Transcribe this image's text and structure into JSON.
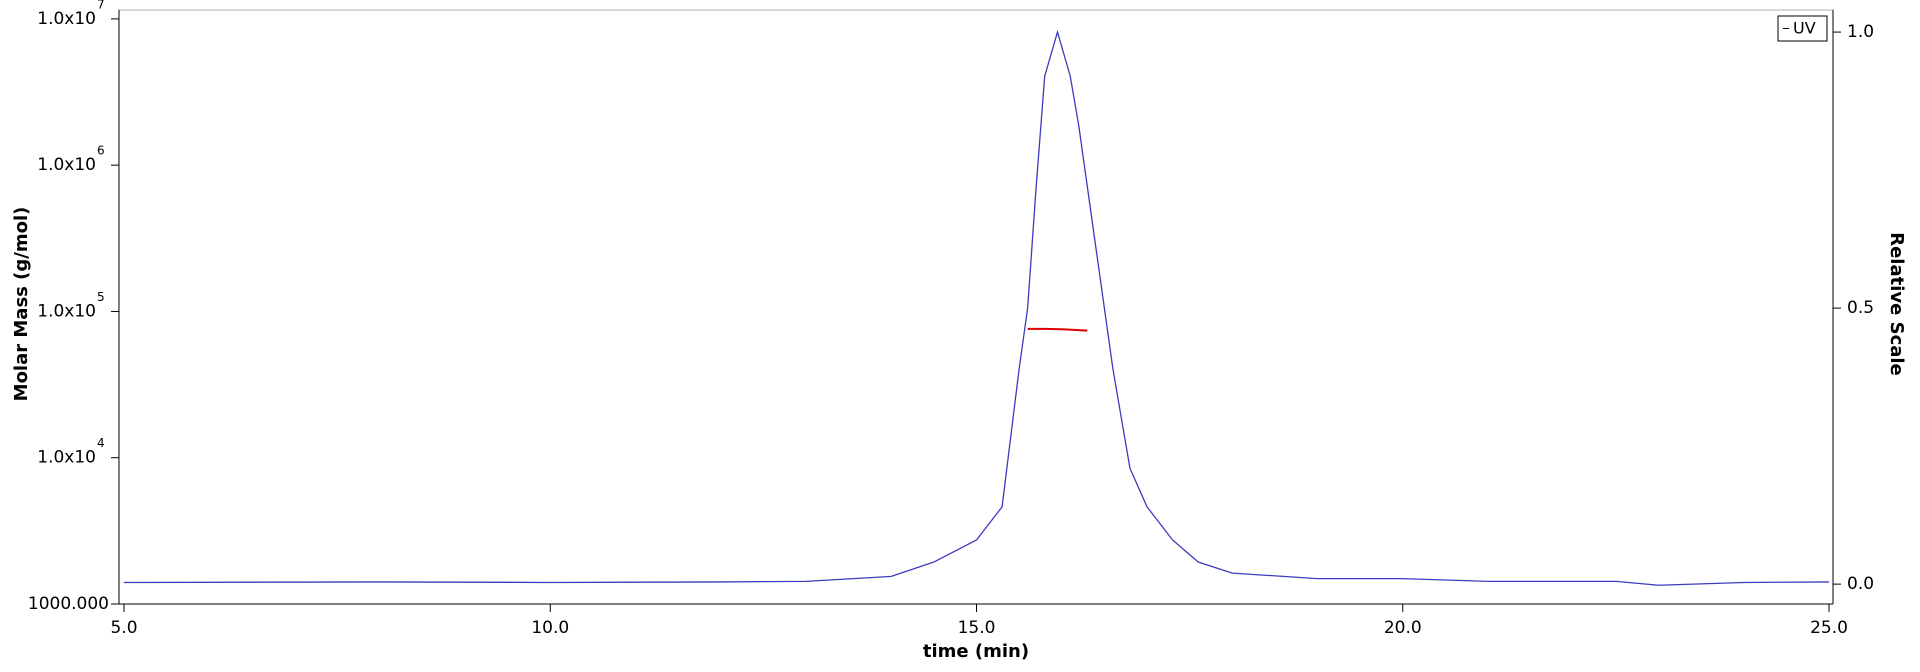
{
  "chart_data": {
    "type": "line",
    "x_label": "time (min)",
    "y_label": "Molar Mass (g/mol)",
    "y2_label": "Relative Scale",
    "xlim": [
      5,
      25
    ],
    "xticks": [
      {
        "value": 5,
        "label": "5.0"
      },
      {
        "value": 10,
        "label": "10.0"
      },
      {
        "value": 15,
        "label": "15.0"
      },
      {
        "value": 20,
        "label": "20.0"
      },
      {
        "value": 25,
        "label": "25.0"
      }
    ],
    "ylim": [
      1000,
      11500000
    ],
    "log_y": true,
    "yticks": [
      {
        "value": 1000,
        "label": "1000.000"
      },
      {
        "value": 10000,
        "label": "1.0x10",
        "exponent": "4"
      },
      {
        "value": 100000,
        "label": "1.0x10",
        "exponent": "5"
      },
      {
        "value": 1000000,
        "label": "1.0x10",
        "exponent": "6"
      },
      {
        "value": 10000000,
        "label": "1.0x10",
        "exponent": "7"
      }
    ],
    "y2lim": [
      -0.036,
      1.04
    ],
    "y2ticks": [
      {
        "value": 0,
        "label": "0.0"
      },
      {
        "value": 0.5,
        "label": "0.5"
      },
      {
        "value": 1,
        "label": "1.0"
      }
    ],
    "legend": "top-right",
    "series": [
      {
        "name": "UV",
        "color": "#3b3bbd",
        "axis": "y2",
        "x": [
          5,
          8,
          10,
          12,
          13,
          14,
          14.5,
          15,
          15.3,
          15.5,
          15.6,
          15.7,
          15.8,
          15.95,
          16.1,
          16.2,
          16.4,
          16.6,
          16.8,
          17,
          17.3,
          17.6,
          18,
          19,
          20,
          21,
          22.5,
          23,
          24,
          25
        ],
        "values": [
          0.003,
          0.004,
          0.003,
          0.004,
          0.005,
          0.014,
          0.04,
          0.08,
          0.14,
          0.39,
          0.5,
          0.72,
          0.92,
          1.0,
          0.92,
          0.83,
          0.61,
          0.39,
          0.21,
          0.14,
          0.08,
          0.04,
          0.02,
          0.01,
          0.01,
          0.005,
          0.005,
          -0.002,
          0.003,
          0.004
        ]
      },
      {
        "color": "#e00000",
        "axis": "y",
        "x": [
          15.6,
          15.8,
          16.0,
          16.2,
          16.3
        ],
        "values": [
          76000,
          76000,
          75500,
          74500,
          74000
        ]
      }
    ]
  }
}
